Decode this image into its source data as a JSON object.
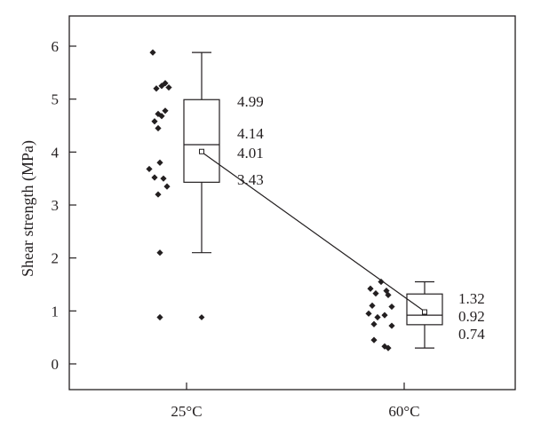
{
  "chart_data": {
    "type": "box",
    "title": "",
    "xlabel": "",
    "ylabel": "Shear strength (MPa)",
    "ylim": [
      -0.5,
      6.4
    ],
    "yticks": [
      0,
      1,
      2,
      3,
      4,
      5,
      6
    ],
    "categories": [
      "25°C",
      "60°C"
    ],
    "groups": [
      {
        "category": "25°C",
        "points": [
          5.88,
          5.3,
          5.25,
          5.22,
          5.2,
          4.78,
          4.72,
          4.68,
          4.58,
          4.45,
          3.8,
          3.68,
          3.52,
          3.5,
          3.35,
          3.2,
          2.1,
          0.88
        ],
        "box": {
          "min": 2.1,
          "q1": 3.43,
          "median": 4.14,
          "q3": 4.99,
          "max": 5.88,
          "mean": 4.01,
          "outliers": [
            0.88
          ]
        },
        "labels": [
          "4.99",
          "4.14",
          "4.01",
          "3.43"
        ]
      },
      {
        "category": "60°C",
        "points": [
          1.55,
          1.42,
          1.38,
          1.33,
          1.3,
          1.1,
          1.08,
          0.95,
          0.92,
          0.88,
          0.75,
          0.72,
          0.45,
          0.33,
          0.3
        ],
        "box": {
          "min": 0.3,
          "q1": 0.74,
          "median": 0.92,
          "q3": 1.32,
          "max": 1.55,
          "mean": 0.98,
          "outliers": []
        },
        "labels": [
          "1.32",
          "0.92",
          "0.74"
        ]
      }
    ],
    "mean_connector": true
  }
}
